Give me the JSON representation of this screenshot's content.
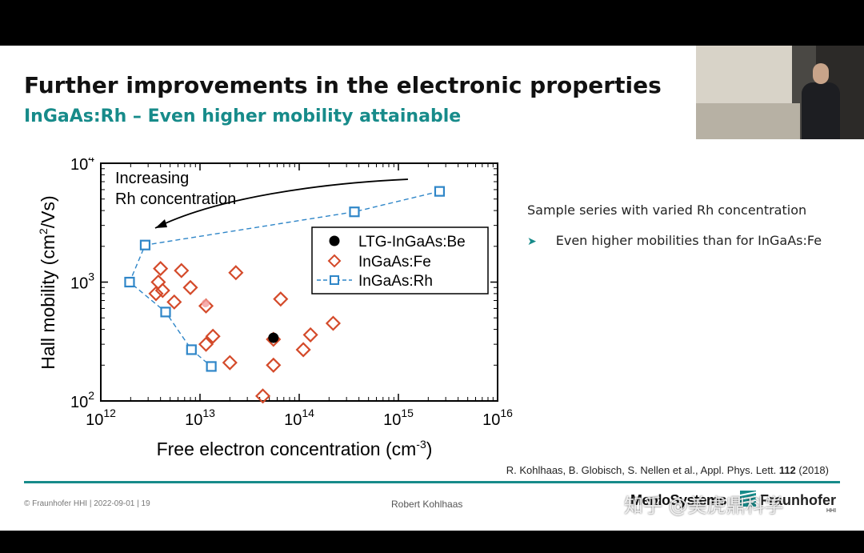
{
  "slide": {
    "title": "Further improvements in the electronic properties",
    "subtitle": "InGaAs:Rh – Even higher mobility attainable",
    "side_text": "Sample series with varied Rh concentration",
    "bullet_arrow": "➤",
    "bullet_text": "Even higher mobilities than for InGaAs:Fe",
    "reference_pre": "R. Kohlhaas, B. Globisch, S. Nellen et al., Appl. Phys. Lett. ",
    "reference_volume": "112",
    "reference_post": " (2018)"
  },
  "footer": {
    "left": "© Fraunhofer HHI | 2022-09-01 | 19",
    "center": "Robert Kohlhaas",
    "logo_menlo": "MenloSystems",
    "logo_fraunhofer": "Fraunhofer",
    "logo_hhi": "HHI"
  },
  "watermark": "知乎 @美虎鼎科学",
  "colors": {
    "accent": "#178b8a",
    "fe": "#d44a2a",
    "rh": "#2f86c8"
  },
  "chart_data": {
    "type": "scatter",
    "x_scale": "log",
    "y_scale": "log",
    "xlim": [
      1000000000000.0,
      1e+16
    ],
    "ylim": [
      100,
      10000
    ],
    "xlabel": "Free electron concentration (cm",
    "xlabel_sup": "-3",
    "xlabel_end": ")",
    "ylabel": "Hall mobility (cm",
    "ylabel_sup": "2",
    "ylabel_end": "/Vs)",
    "x_ticks": [
      {
        "value": 1000000000000.0,
        "base": "10",
        "exp": "12"
      },
      {
        "value": 10000000000000.0,
        "base": "10",
        "exp": "13"
      },
      {
        "value": 100000000000000.0,
        "base": "10",
        "exp": "14"
      },
      {
        "value": 1000000000000000.0,
        "base": "10",
        "exp": "15"
      },
      {
        "value": 1e+16,
        "base": "10",
        "exp": "16"
      }
    ],
    "y_ticks": [
      {
        "value": 100,
        "base": "10",
        "exp": "2"
      },
      {
        "value": 1000,
        "base": "10",
        "exp": "3"
      },
      {
        "value": 10000,
        "base": "10",
        "exp": "4"
      }
    ],
    "annotation_line1": "Increasing",
    "annotation_line2": "Rh concentration",
    "legend_placement": "top-right",
    "series": [
      {
        "name": "LTG-InGaAs:Be",
        "marker": "circle",
        "color": "#000000",
        "points": [
          [
            55000000000000.0,
            340
          ]
        ]
      },
      {
        "name": "InGaAs:Fe",
        "marker": "diamond",
        "color": "#d44a2a",
        "points": [
          [
            4000000000000.0,
            1300
          ],
          [
            6500000000000.0,
            1250
          ],
          [
            3800000000000.0,
            1000
          ],
          [
            4200000000000.0,
            850
          ],
          [
            3600000000000.0,
            800
          ],
          [
            8000000000000.0,
            900
          ],
          [
            5500000000000.0,
            680
          ],
          [
            11500000000000.0,
            630
          ],
          [
            23000000000000.0,
            1200
          ],
          [
            65000000000000.0,
            720
          ],
          [
            13500000000000.0,
            350
          ],
          [
            11500000000000.0,
            300
          ],
          [
            20000000000000.0,
            210
          ],
          [
            55000000000000.0,
            330
          ],
          [
            130000000000000.0,
            360
          ],
          [
            220000000000000.0,
            450
          ],
          [
            110000000000000.0,
            270
          ],
          [
            55000000000000.0,
            200
          ],
          [
            43000000000000.0,
            110
          ]
        ]
      },
      {
        "name": "InGaAs:Rh",
        "marker": "square",
        "color": "#2f86c8",
        "connected": true,
        "points": [
          [
            2600000000000000.0,
            5800
          ],
          [
            360000000000000.0,
            3900
          ],
          [
            2800000000000.0,
            2050
          ],
          [
            1950000000000.0,
            1000
          ],
          [
            4500000000000.0,
            560
          ],
          [
            8200000000000.0,
            270
          ],
          [
            13000000000000.0,
            195
          ]
        ]
      }
    ]
  }
}
